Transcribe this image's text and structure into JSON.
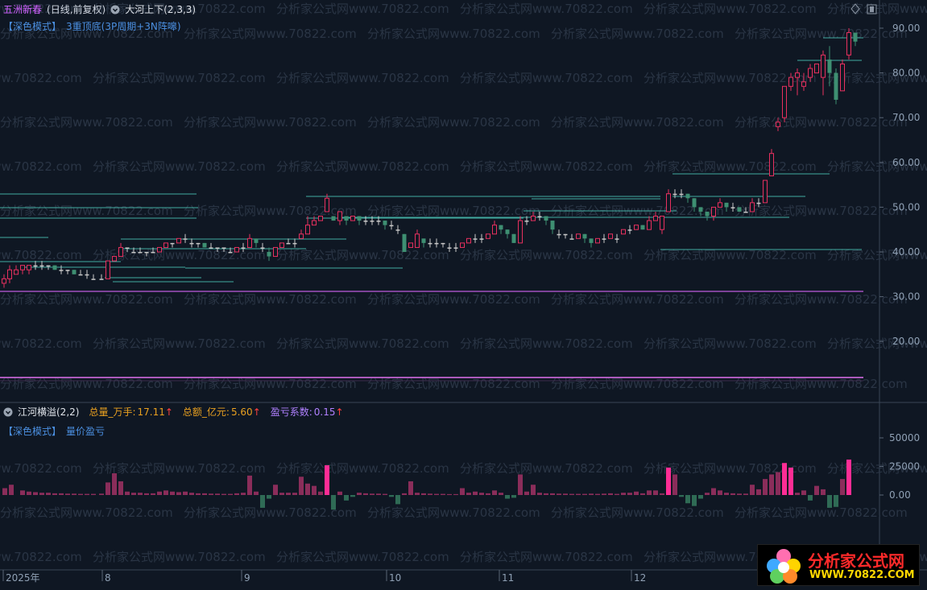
{
  "header": {
    "stock_name": "五洲新春",
    "period": "(日线,前复权)",
    "indicator_name": "大河上下(2,3,3)",
    "mode_tag": "【深色模式】",
    "mode_desc": "3重顶底(3P周期+3N阵嗥)"
  },
  "sub_header": {
    "indicator_name": "江河横溢(2,2)",
    "vol_label": "总量_万手:",
    "vol_value": "17.11",
    "amt_label": "总额_亿元:",
    "amt_value": "5.60",
    "pl_label": "盈亏系数:",
    "pl_value": "0.15",
    "up_arrow": "↑",
    "mode_tag": "【深色模式】",
    "mode_desc": "量价盈亏"
  },
  "price_axis": [
    "90.00",
    "80.00",
    "70.00",
    "60.00",
    "50.00",
    "40.00",
    "30.00",
    "20.00"
  ],
  "vol_axis": [
    "50000",
    "25000",
    "0.00"
  ],
  "time_axis": [
    "2025年",
    "8",
    "9",
    "10",
    "11",
    "12"
  ],
  "watermark": "分析家公式网www.70822.com",
  "logo": {
    "title": "分析家公式网",
    "url": "WWW.70822.COM"
  },
  "colors": {
    "up": "#e8305f",
    "down": "#3e8f72",
    "mid": "#c8c8c8",
    "level": "#4fd1c0",
    "support": "#c060d0",
    "vol_up": "#8a2d5a",
    "vol_hot": "#ff2d95",
    "vol_down": "#2f6b55"
  }
}
